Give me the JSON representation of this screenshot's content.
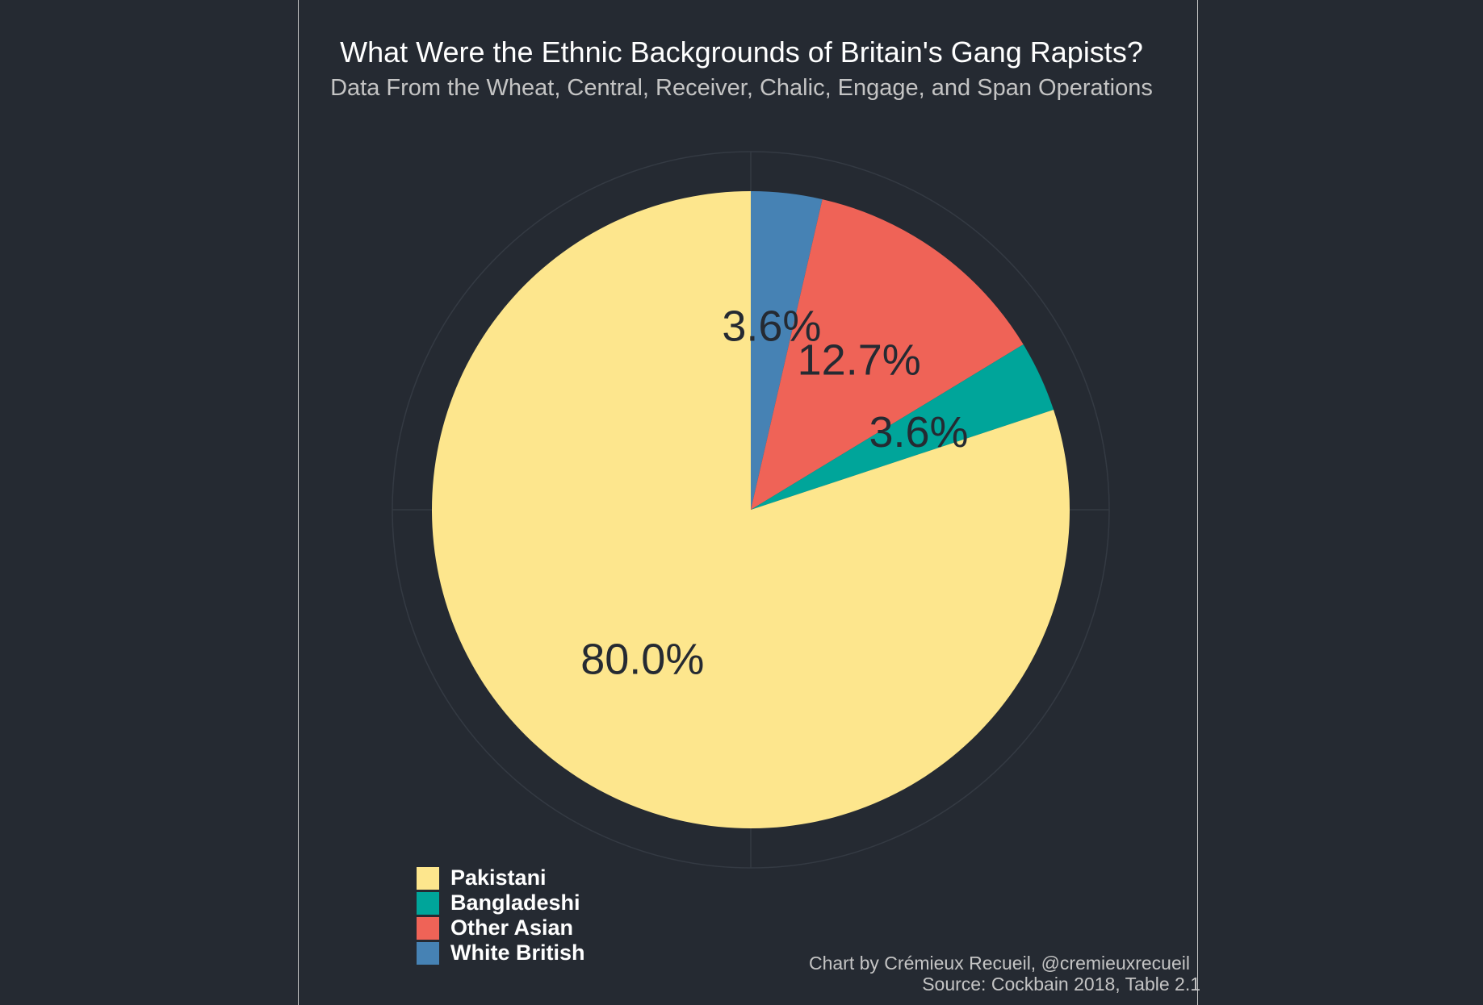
{
  "chart_data": {
    "type": "pie",
    "title": "What Were the Ethnic Backgrounds of Britain's Gang Rapists?",
    "subtitle": "Data From the Wheat, Central, Receiver, Chalic, Engage, and Span Operations",
    "start": "12 o'clock, clockwise",
    "legend_position": "bottom-left",
    "slices": [
      {
        "name": "White British",
        "value": 3.6,
        "label": "3.6%",
        "color": "#4682b4"
      },
      {
        "name": "Other Asian",
        "value": 12.7,
        "label": "12.7%",
        "color": "#ef6357"
      },
      {
        "name": "Bangladeshi",
        "value": 3.6,
        "label": "3.6%",
        "color": "#00a59a"
      },
      {
        "name": "Pakistani",
        "value": 80.0,
        "label": "80.0%",
        "color": "#fde68d"
      }
    ],
    "legend": [
      "Pakistani",
      "Bangladeshi",
      "Other Asian",
      "White British"
    ]
  },
  "credit": {
    "author": "Chart by Crémieux Recueil, @cremieuxrecueil",
    "source": "Source: Cockbain 2018, Table 2.1"
  },
  "colors": {
    "background": "#252a32",
    "grid": "#343a43",
    "label_text": "#252a32"
  }
}
